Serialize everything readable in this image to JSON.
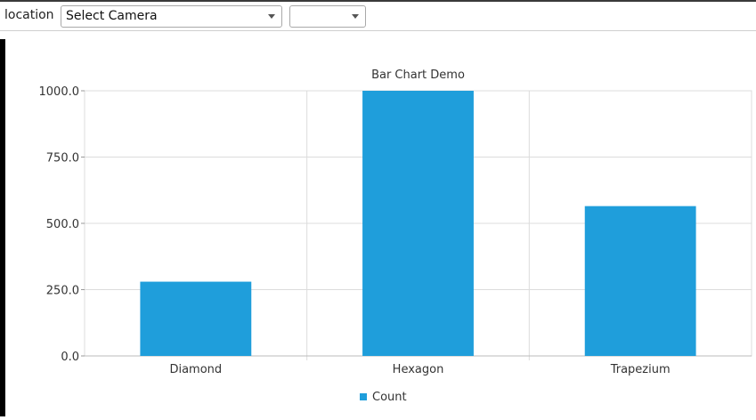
{
  "toolbar": {
    "location_label": "location",
    "camera_select": {
      "value": "Select Camera"
    },
    "second_select": {
      "value": ""
    }
  },
  "colors": {
    "bar": "#1f9edb",
    "grid": "#dcdcdc",
    "text": "#333333"
  },
  "chart_data": {
    "type": "bar",
    "title": "Bar Chart Demo",
    "categories": [
      "Diamond",
      "Hexagon",
      "Trapezium"
    ],
    "series": [
      {
        "name": "Count",
        "values": [
          280,
          1000,
          565
        ]
      }
    ],
    "ylim": [
      0,
      1000
    ],
    "yticks": [
      "0.0",
      "250.0",
      "500.0",
      "750.0",
      "1000.0"
    ],
    "grid": true,
    "legend": "bottom"
  }
}
